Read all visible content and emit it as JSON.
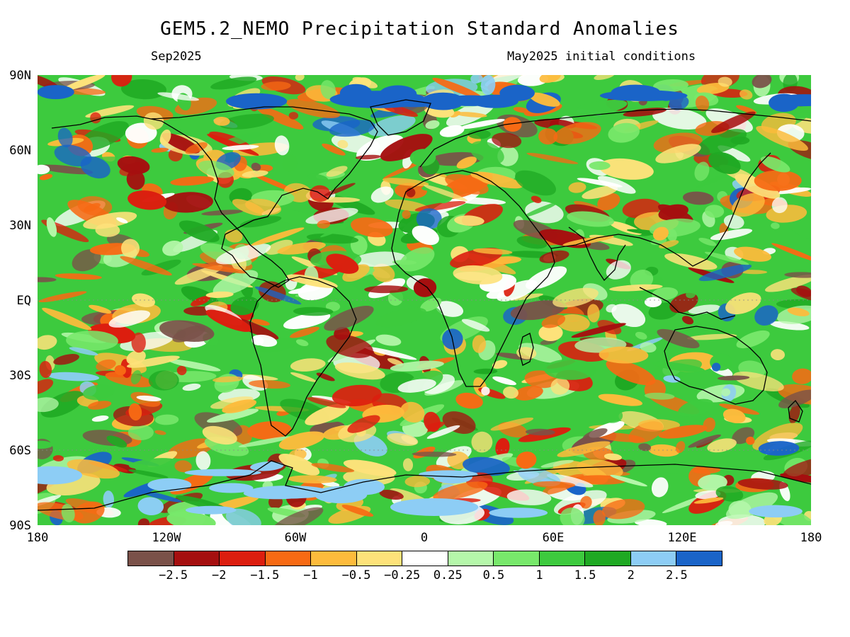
{
  "header": {
    "title": "GEM5.2_NEMO Precipitation Standard Anomalies",
    "valid_month": "Sep2025",
    "initial_conditions": "May2025 initial conditions"
  },
  "axes": {
    "latitude_labels": [
      "90N",
      "60N",
      "30N",
      "EQ",
      "30S",
      "60S",
      "90S"
    ],
    "longitude_labels": [
      "180",
      "120W",
      "60W",
      "0",
      "60E",
      "120E",
      "180"
    ]
  },
  "colorbar": {
    "colors": [
      "#7a5149",
      "#a50f0f",
      "#dc1e0f",
      "#f76a14",
      "#fdbb3c",
      "#fde27a",
      "#ffffff",
      "#b5f7aa",
      "#78e86b",
      "#3dca3e",
      "#1fa923",
      "#8dcdf5",
      "#1a64c8"
    ],
    "tick_labels": [
      "−2.5",
      "−2",
      "−1.5",
      "−1",
      "−0.5",
      "−0.25",
      "0.25",
      "0.5",
      "1",
      "1.5",
      "2",
      "2.5"
    ]
  },
  "map_colors": {
    "ocean_base": "#3dca3e",
    "coast": "#000000"
  }
}
